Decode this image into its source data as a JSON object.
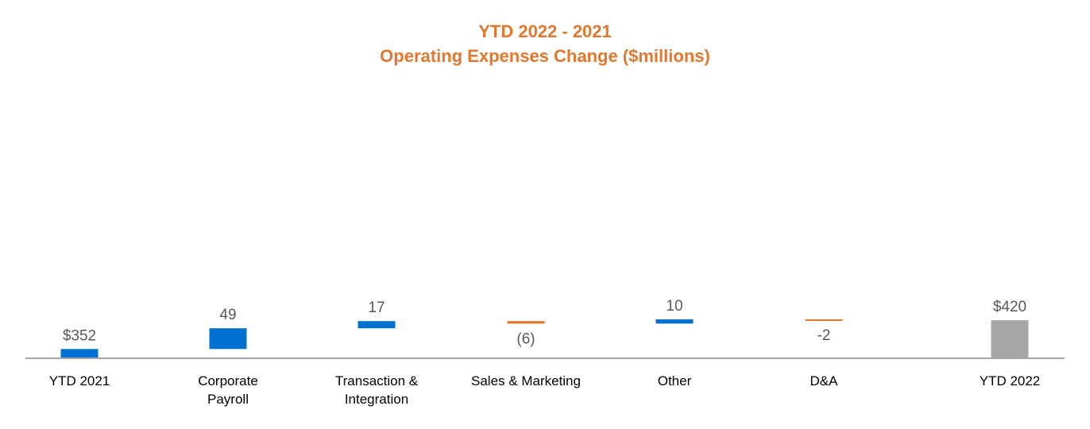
{
  "chart_data": {
    "type": "bar",
    "subtype": "waterfall",
    "title_lines": [
      "YTD 2022 - 2021",
      "Operating Expenses Change ($millions)"
    ],
    "categories": [
      [
        "YTD 2021"
      ],
      [
        "Corporate",
        "Payroll"
      ],
      [
        "Transaction &",
        "Integration"
      ],
      [
        "Sales & Marketing"
      ],
      [
        "Other"
      ],
      [
        "D&A"
      ],
      [
        "YTD 2022"
      ]
    ],
    "values": [
      352,
      49,
      17,
      -6,
      10,
      -2,
      420
    ],
    "value_labels": [
      "$352",
      "49",
      "17",
      "(6)",
      "10",
      "-2",
      "$420"
    ],
    "kinds": [
      "total",
      "increase",
      "increase",
      "decrease",
      "increase",
      "decrease",
      "total"
    ],
    "ylim": [
      330,
      430
    ],
    "grid": false,
    "legend": "none",
    "colors": {
      "title": "#E2772F",
      "increase": "#0070D2",
      "decrease": "#E2772F",
      "ending_total": "#A6A6A6",
      "axis": "#A6A6A6",
      "value_label": "#595959",
      "category_label": "#000000"
    }
  }
}
